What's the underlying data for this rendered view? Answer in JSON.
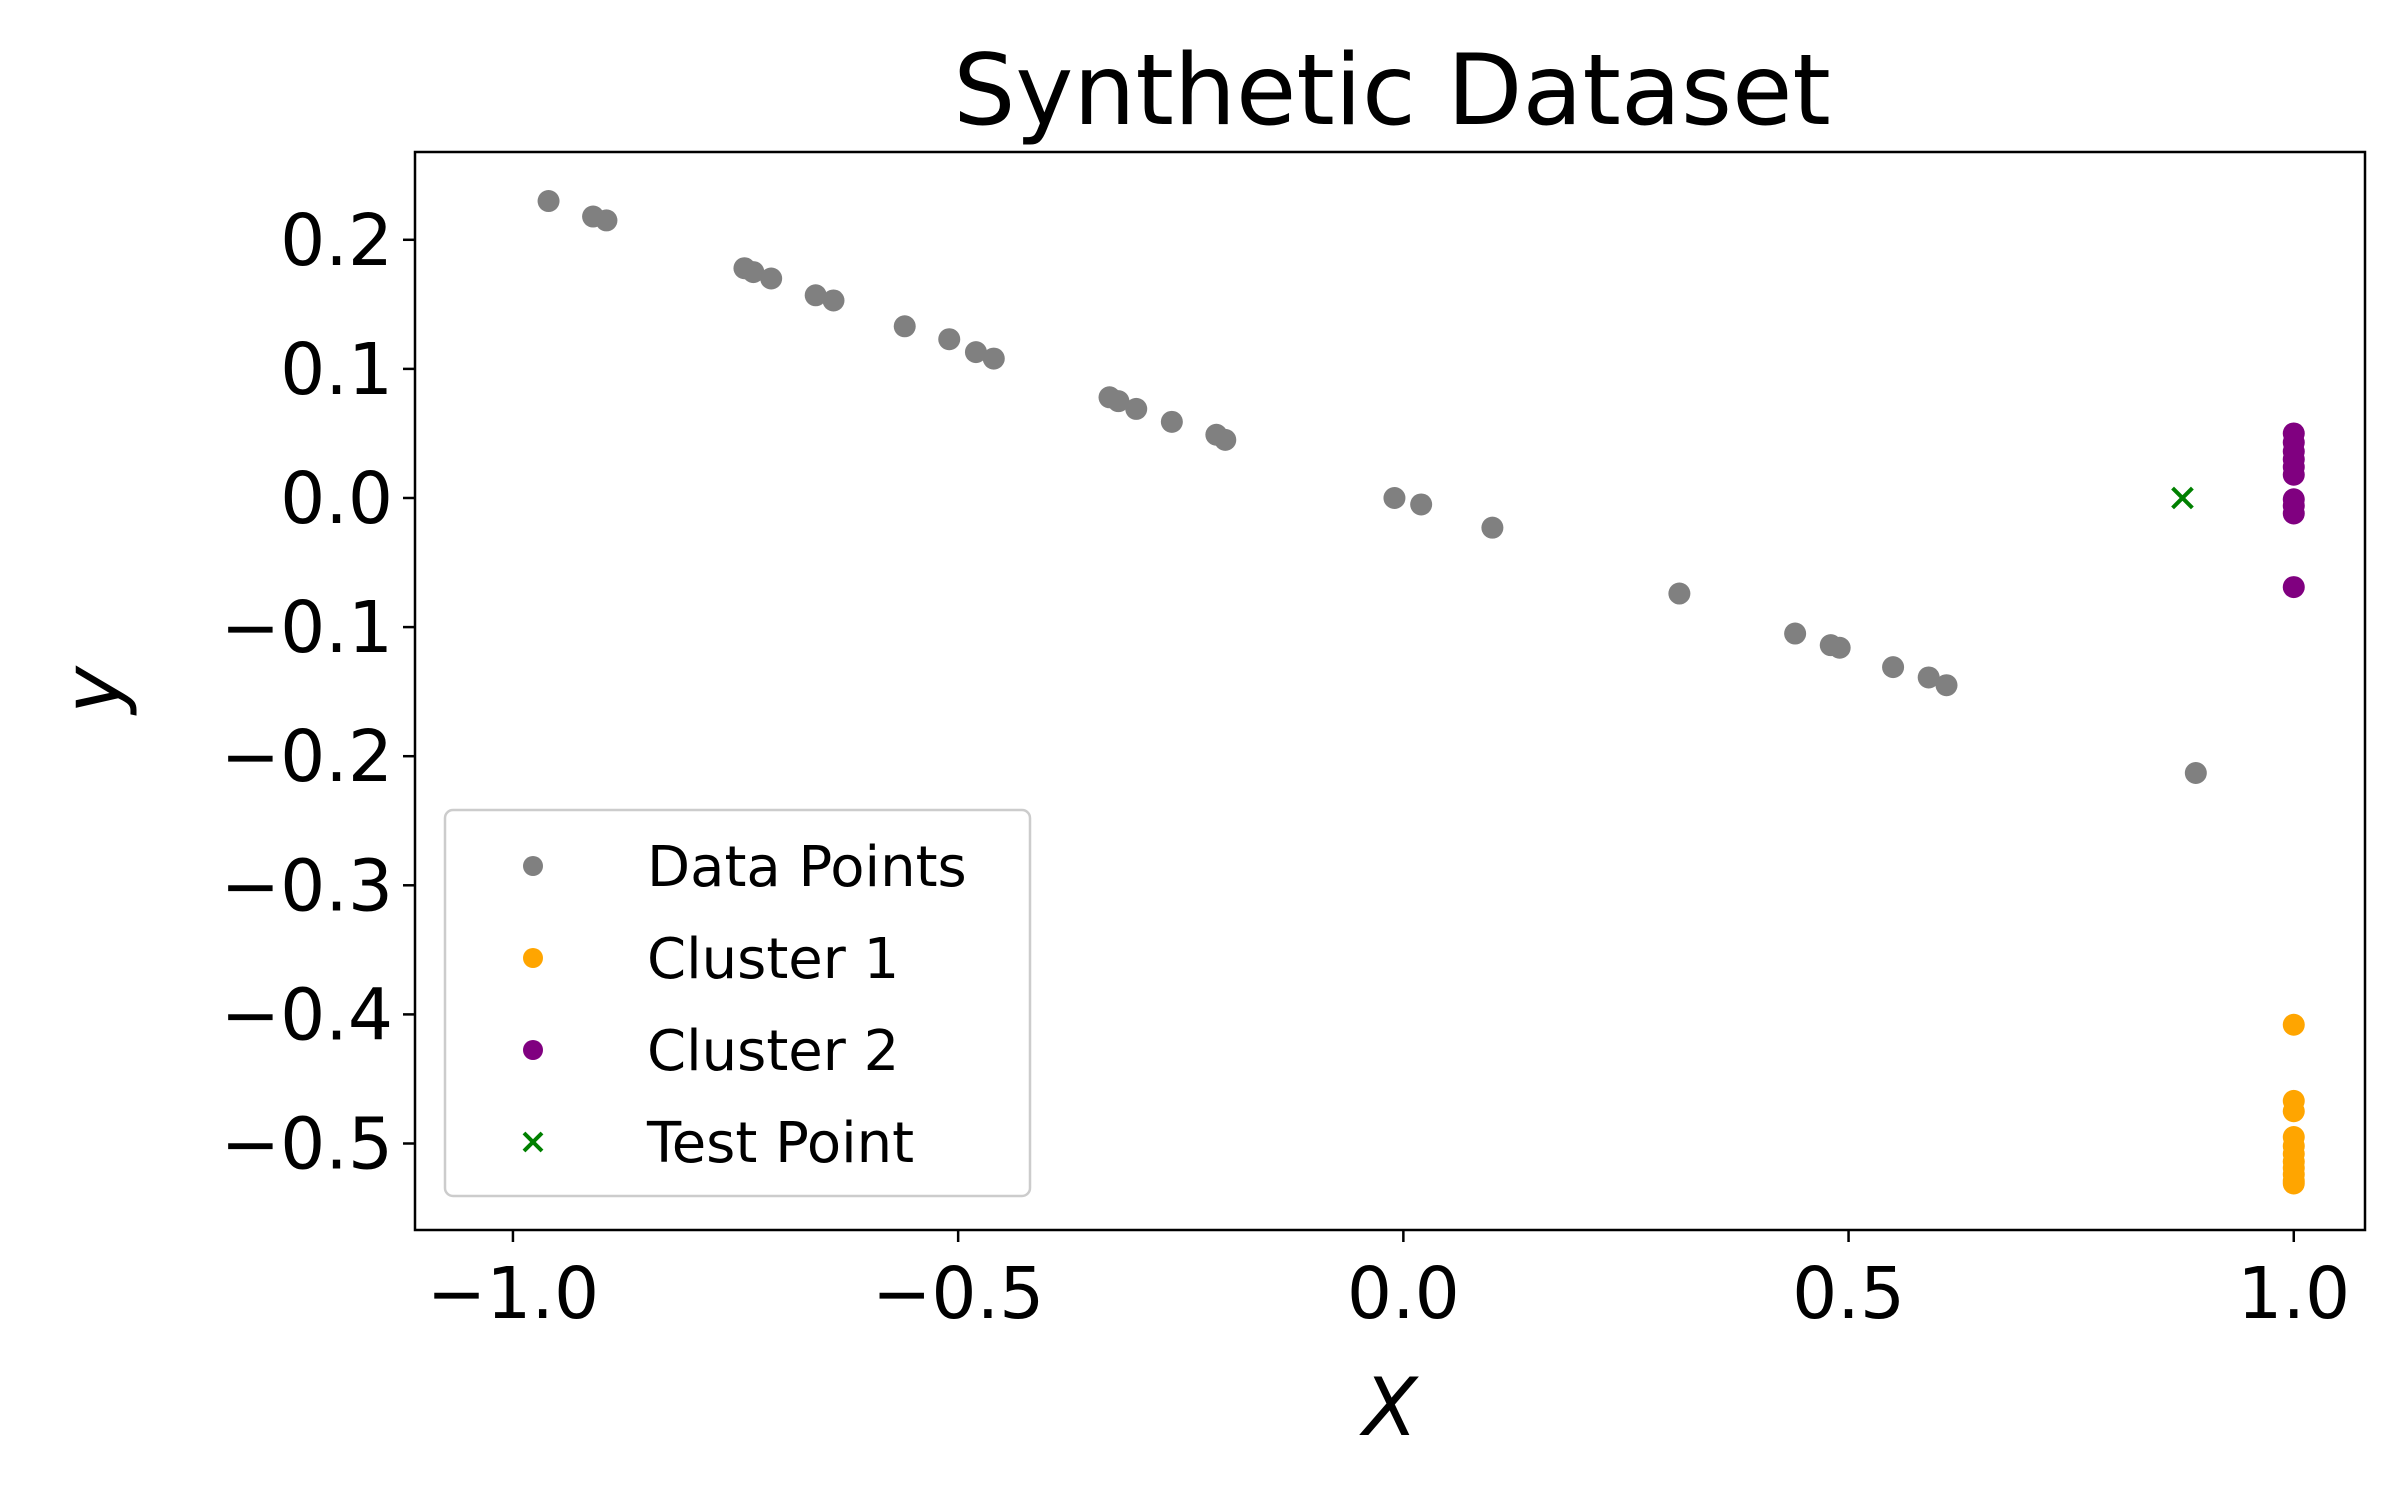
{
  "chart_data": {
    "type": "scatter",
    "title": "Synthetic Dataset",
    "xlabel": "X",
    "ylabel": "y",
    "xlim": [
      -1.11,
      1.08
    ],
    "ylim": [
      -0.567,
      0.268
    ],
    "xticks": [
      -1.0,
      -0.5,
      0.0,
      0.5,
      1.0
    ],
    "xtick_labels": [
      "−1.0",
      "−0.5",
      "0.0",
      "0.5",
      "1.0"
    ],
    "yticks": [
      0.2,
      0.1,
      0.0,
      -0.1,
      -0.2,
      -0.3,
      -0.4,
      -0.5
    ],
    "ytick_labels": [
      "0.2",
      "0.1",
      "0.0",
      "−0.1",
      "−0.2",
      "−0.3",
      "−0.4",
      "−0.5"
    ],
    "grid": false,
    "legend_position": "lower-left",
    "series": [
      {
        "name": "Data Points",
        "marker": "circle",
        "color": "#808080",
        "x": [
          -0.96,
          -0.91,
          -0.895,
          -0.74,
          -0.73,
          -0.71,
          -0.66,
          -0.64,
          -0.56,
          -0.51,
          -0.48,
          -0.46,
          -0.33,
          -0.32,
          -0.3,
          -0.26,
          -0.21,
          -0.2,
          -0.01,
          0.02,
          0.1,
          0.31,
          0.44,
          0.48,
          0.49,
          0.55,
          0.59,
          0.61,
          0.89
        ],
        "y": [
          0.23,
          0.218,
          0.215,
          0.178,
          0.175,
          0.17,
          0.157,
          0.153,
          0.133,
          0.123,
          0.113,
          0.108,
          0.078,
          0.075,
          0.069,
          0.059,
          0.049,
          0.045,
          0.0,
          -0.005,
          -0.023,
          -0.074,
          -0.105,
          -0.114,
          -0.116,
          -0.131,
          -0.139,
          -0.145,
          -0.213
        ]
      },
      {
        "name": "Cluster 1",
        "marker": "circle",
        "color": "#ffa500",
        "x": [
          1.0,
          1.0,
          1.0,
          1.0,
          1.0,
          1.0,
          1.0,
          1.0,
          1.0,
          1.0,
          1.0
        ],
        "y": [
          -0.408,
          -0.467,
          -0.475,
          -0.495,
          -0.502,
          -0.508,
          -0.514,
          -0.519,
          -0.524,
          -0.529,
          -0.531
        ]
      },
      {
        "name": "Cluster 2",
        "marker": "circle",
        "color": "#800080",
        "x": [
          1.0,
          1.0,
          1.0,
          1.0,
          1.0,
          1.0,
          1.0,
          1.0,
          1.0,
          1.0
        ],
        "y": [
          0.05,
          0.043,
          0.036,
          0.03,
          0.024,
          0.018,
          -0.001,
          -0.006,
          -0.012,
          -0.069
        ]
      },
      {
        "name": "Test Point",
        "marker": "x",
        "color": "#008000",
        "x": [
          0.875
        ],
        "y": [
          0.0
        ]
      }
    ]
  }
}
